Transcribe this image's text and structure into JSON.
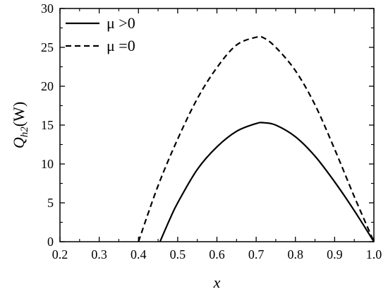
{
  "chart_data": {
    "type": "line",
    "xlabel": "x",
    "ylabel": {
      "main": "Q",
      "sub": "h2",
      "unit": "(W)"
    },
    "xlim": [
      0.2,
      1.0
    ],
    "ylim": [
      0,
      30
    ],
    "xticks": [
      0.2,
      0.3,
      0.4,
      0.5,
      0.6,
      0.7,
      0.8,
      0.9,
      1.0
    ],
    "xtick_labels": [
      "0.2",
      "0.3",
      "0.4",
      "0.5",
      "0.6",
      "0.7",
      "0.8",
      "0.9",
      "1.0"
    ],
    "yticks": [
      0,
      5,
      10,
      15,
      20,
      25,
      30
    ],
    "ytick_labels": [
      "0",
      "5",
      "10",
      "15",
      "20",
      "25",
      "30"
    ],
    "grid": false,
    "legend_position": "top-left",
    "series": [
      {
        "name": "μ >0",
        "style": "solid",
        "color": "#000000",
        "x": [
          0.455,
          0.48,
          0.5,
          0.55,
          0.6,
          0.65,
          0.7,
          0.72,
          0.75,
          0.8,
          0.85,
          0.9,
          0.95,
          1.0
        ],
        "y": [
          0,
          2.9,
          5.0,
          9.3,
          12.2,
          14.2,
          15.2,
          15.3,
          15.0,
          13.5,
          11.0,
          7.7,
          4.0,
          0
        ]
      },
      {
        "name": "μ =0",
        "style": "dashed",
        "color": "#000000",
        "x": [
          0.4,
          0.45,
          0.5,
          0.55,
          0.6,
          0.65,
          0.7,
          0.72,
          0.75,
          0.8,
          0.85,
          0.9,
          0.95,
          1.0
        ],
        "y": [
          0,
          7.2,
          13.2,
          18.4,
          22.4,
          25.3,
          26.3,
          26.2,
          25.0,
          22.0,
          17.6,
          11.9,
          5.8,
          0
        ]
      }
    ]
  }
}
